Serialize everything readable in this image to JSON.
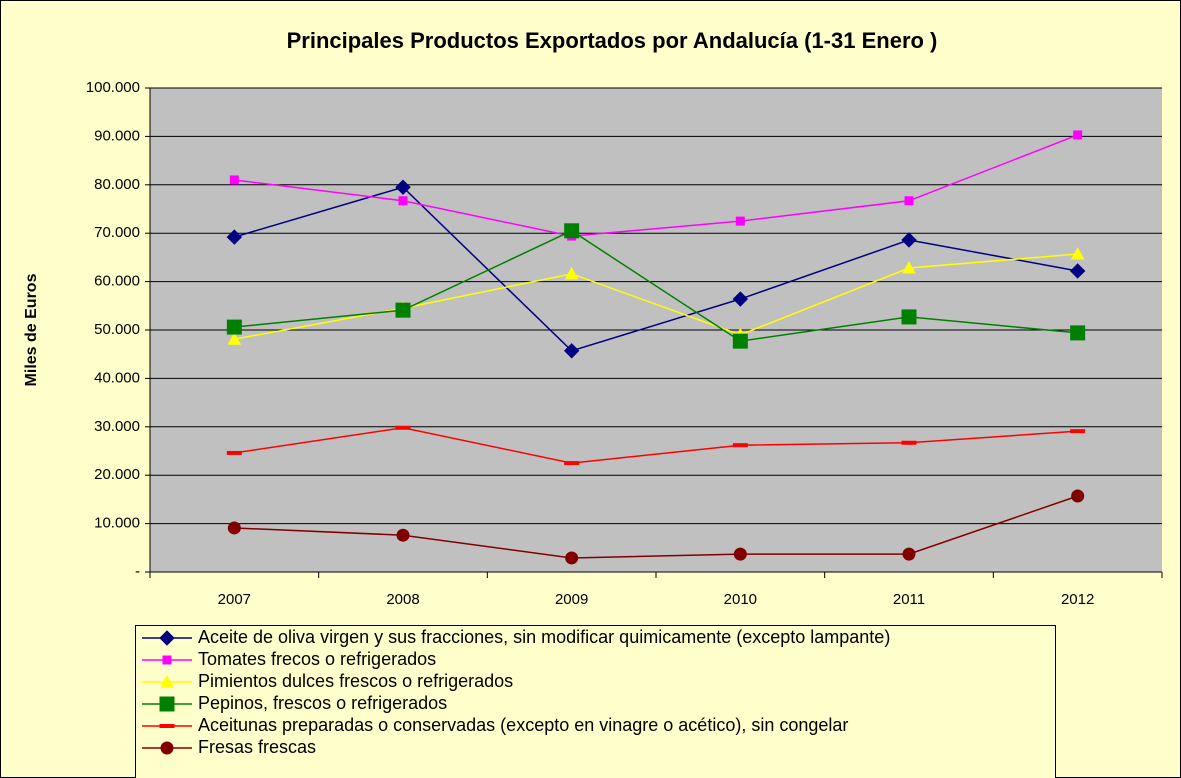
{
  "chart_data": {
    "type": "line",
    "title": "Principales Productos Exportados por Andalucía (1-31 Enero )",
    "y_label": "Miles de Euros",
    "categories": [
      "2007",
      "2008",
      "2009",
      "2010",
      "2011",
      "2012"
    ],
    "ylim": [
      0,
      100000
    ],
    "yticks": [
      {
        "value": 0,
        "label": "-"
      },
      {
        "value": 10000,
        "label": "10.000"
      },
      {
        "value": 20000,
        "label": "20.000"
      },
      {
        "value": 30000,
        "label": "30.000"
      },
      {
        "value": 40000,
        "label": "40.000"
      },
      {
        "value": 50000,
        "label": "50.000"
      },
      {
        "value": 60000,
        "label": "60.000"
      },
      {
        "value": 70000,
        "label": "70.000"
      },
      {
        "value": 80000,
        "label": "80.000"
      },
      {
        "value": 90000,
        "label": "90.000"
      },
      {
        "value": 100000,
        "label": "100.000"
      }
    ],
    "grid": true,
    "legend": "bottom",
    "series": [
      {
        "name": "Aceite de oliva virgen y sus fracciones, sin modificar quimicamente (excepto lampante)",
        "color": "#000080",
        "marker": "diamond",
        "values": [
          69200,
          79500,
          45700,
          56400,
          68600,
          62200
        ]
      },
      {
        "name": "Tomates frecos o refrigerados",
        "color": "#FF00FF",
        "marker": "square",
        "values": [
          81000,
          76700,
          69400,
          72500,
          76700,
          90300
        ]
      },
      {
        "name": "Pimientos dulces frescos o refrigerados",
        "color": "#FFFF00",
        "marker": "triangle",
        "values": [
          48100,
          54500,
          61600,
          49000,
          62800,
          65700
        ]
      },
      {
        "name": "Pepinos, frescos o refrigerados",
        "color": "#008000",
        "marker": "bigsquare",
        "values": [
          50600,
          54100,
          70500,
          47700,
          52700,
          49400
        ]
      },
      {
        "name": "Aceitunas preparadas o conservadas (excepto en vinagre o acético), sin congelar",
        "color": "#FF0000",
        "marker": "dash",
        "values": [
          24600,
          29800,
          22500,
          26200,
          26700,
          29100
        ]
      },
      {
        "name": "Fresas frescas",
        "color": "#800000",
        "marker": "circle",
        "values": [
          9100,
          7600,
          2900,
          3700,
          3700,
          15700
        ]
      }
    ]
  }
}
